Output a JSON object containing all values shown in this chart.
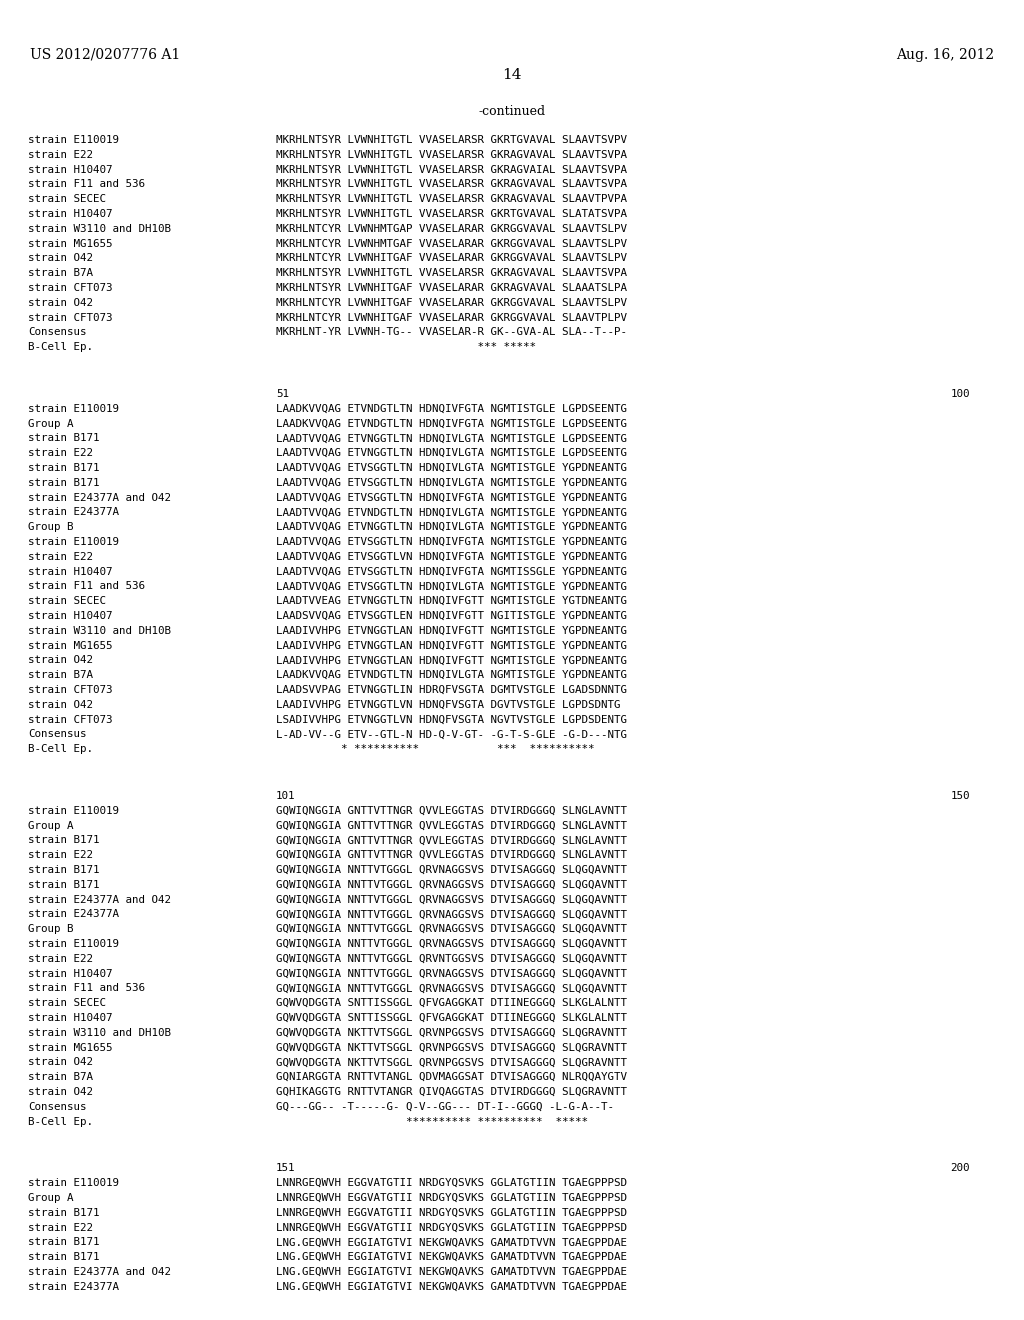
{
  "bg_color": "#ffffff",
  "header_left": "US 2012/0207776 A1",
  "header_right": "Aug. 16, 2012",
  "page_number": "14",
  "continued_label": "-continued",
  "sections": [
    {
      "pos_left": null,
      "pos_right": null,
      "rows": [
        {
          "label": "strain E110019",
          "seq": "MKRHLNTSYR LVWNHITGTL VVASELARSR GKRTGVAVAL SLAAVTSVPV"
        },
        {
          "label": "strain E22",
          "seq": "MKRHLNTSYR LVWNHITGTL VVASELARSR GKRAGVAVAL SLAAVTSVPA"
        },
        {
          "label": "strain H10407",
          "seq": "MKRHLNTSYR LVWNHITGTL VVASELARSR GKRAGVAIAL SLAAVTSVPA"
        },
        {
          "label": "strain F11 and 536",
          "seq": "MKRHLNTSYR LVWNHITGTL VVASELARSR GKRAGVAVAL SLAAVTSVPA"
        },
        {
          "label": "strain SECEC",
          "seq": "MKRHLNTSYR LVWNHITGTL VVASELARSR GKRAGVAVAL SLAAVTPVPA"
        },
        {
          "label": "strain H10407",
          "seq": "MKRHLNTSYR LVWNHITGTL VVASELARSR GKRTGVAVAL SLATATSVPA"
        },
        {
          "label": "strain W3110 and DH10B",
          "seq": "MKRHLNTCYR LVWNHMTGAP VVASELARAR GKRGGVAVAL SLAAVTSLPV"
        },
        {
          "label": "strain MG1655",
          "seq": "MKRHLNTCYR LVWNHMTGAF VVASELARAR GKRGGVAVAL SLAAVTSLPV"
        },
        {
          "label": "strain O42",
          "seq": "MKRHLNTCYR LVWNHITGAF VVASELARAR GKRGGVAVAL SLAAVTSLPV"
        },
        {
          "label": "strain B7A",
          "seq": "MKRHLNTSYR LVWNHITGTL VVASELARSR GKRAGVAVAL SLAAVTSVPA"
        },
        {
          "label": "strain CFT073",
          "seq": "MKRHLNTSYR LVWNHITGAF VVASELARAR GKRAGVAVAL SLAAATSLPA"
        },
        {
          "label": "strain O42",
          "seq": "MKRHLNTCYR LVWNHITGAF VVASELARAR GKRGGVAVAL SLAAVTSLPV"
        },
        {
          "label": "strain CFT073",
          "seq": "MKRHLNTCYR LVWNHITGAF VVASELARAR GKRGGVAVAL SLAAVTPLPV"
        },
        {
          "label": "Consensus",
          "seq": "MKRHLNT-YR LVWNH-TG-- VVASELAR-R GK--GVA-AL SLA--T--P-"
        },
        {
          "label": "B-Cell Ep.",
          "seq": "                               *** *****"
        }
      ]
    },
    {
      "pos_left": "51",
      "pos_right": "100",
      "rows": [
        {
          "label": "strain E110019",
          "seq": "LAADKVVQAG ETVNDGTLTN HDNQIVFGTA NGMTISTGLE LGPDSEENTG"
        },
        {
          "label": "Group A",
          "seq": "LAADKVVQAG ETVNDGTLTN HDNQIVFGTA NGMTISTGLE LGPDSEENTG"
        },
        {
          "label": "strain B171",
          "seq": "LAADTVVQAG ETVNGGTLTN HDNQIVLGTA NGMTISTGLE LGPDSEENTG"
        },
        {
          "label": "strain E22",
          "seq": "LAADTVVQAG ETVNGGTLTN HDNQIVLGTA NGMTISTGLE LGPDSEENTG"
        },
        {
          "label": "strain B171",
          "seq": "LAADTVVQAG ETVSGGTLTN HDNQIVLGTA NGMTISTGLE YGPDNEANTG"
        },
        {
          "label": "strain B171",
          "seq": "LAADTVVQAG ETVSGGTLTN HDNQIVLGTA NGMTISTGLE YGPDNEANTG"
        },
        {
          "label": "strain E24377A and O42",
          "seq": "LAADTVVQAG ETVSGGTLTN HDNQIVFGTA NGMTISTGLE YGPDNEANTG"
        },
        {
          "label": "strain E24377A",
          "seq": "LAADTVVQAG ETVNDGTLTN HDNQIVLGTA NGMTISTGLE YGPDNEANTG"
        },
        {
          "label": "Group B",
          "seq": "LAADTVVQAG ETVNGGTLTN HDNQIVLGTA NGMTISTGLE YGPDNEANTG"
        },
        {
          "label": "strain E110019",
          "seq": "LAADTVVQAG ETVSGGTLTN HDNQIVFGTA NGMTISTGLE YGPDNEANTG"
        },
        {
          "label": "strain E22",
          "seq": "LAADTVVQAG ETVSGGTLVN HDNQIVFGTA NGMTISTGLE YGPDNEANTG"
        },
        {
          "label": "strain H10407",
          "seq": "LAADTVVQAG ETVSGGTLTN HDNQIVFGTA NGMTISSGLE YGPDNEANTG"
        },
        {
          "label": "strain F11 and 536",
          "seq": "LAADTVVQAG ETVSGGTLTN HDNQIVLGTA NGMTISTGLE YGPDNEANTG"
        },
        {
          "label": "strain SECEC",
          "seq": "LAADTVVEAG ETVNGGTLTN HDNQIVFGTT NGMTISTGLE YGTDNEANTG"
        },
        {
          "label": "strain H10407",
          "seq": "LAADSVVQAG ETVSGGTLEN HDNQIVFGTT NGITISTGLE YGPDNEANTG"
        },
        {
          "label": "strain W3110 and DH10B",
          "seq": "LAADIVVHPG ETVNGGTLAN HDNQIVFGTT NGMTISTGLE YGPDNEANTG"
        },
        {
          "label": "strain MG1655",
          "seq": "LAADIVVHPG ETVNGGTLAN HDNQIVFGTT NGMTISTGLE YGPDNEANTG"
        },
        {
          "label": "strain O42",
          "seq": "LAADIVVHPG ETVNGGTLAN HDNQIVFGTT NGMTISTGLE YGPDNEANTG"
        },
        {
          "label": "strain B7A",
          "seq": "LAADKVVQAG ETVNDGTLTN HDNQIVLGTA NGMTISTGLE YGPDNEANTG"
        },
        {
          "label": "strain CFT073",
          "seq": "LAADSVVPAG ETVNGGTLIN HDRQFVSGTA DGMTVSTGLE LGADSDNNTG"
        },
        {
          "label": "strain O42",
          "seq": "LAADIVVHPG ETVNGGTLVN HDNQFVSGTA DGVTVSTGLE LGPDSDNTG"
        },
        {
          "label": "strain CFT073",
          "seq": "LSADIVVHPG ETVNGGTLVN HDNQFVSGTA NGVTVSTGLE LGPDSDENTG"
        },
        {
          "label": "Consensus",
          "seq": "L-AD-VV--G ETV--GTL-N HD-Q-V-GT- -G-T-S-GLE -G-D---NTG"
        },
        {
          "label": "B-Cell Ep.",
          "seq": "          * **********            ***  **********"
        }
      ]
    },
    {
      "pos_left": "101",
      "pos_right": "150",
      "rows": [
        {
          "label": "strain E110019",
          "seq": "GQWIQNGGIA GNTTVTTNGR QVVLEGGTAS DTVIRDGGGQ SLNGLAVNTT"
        },
        {
          "label": "Group A",
          "seq": "GQWIQNGGIA GNTTVTTNGR QVVLEGGTAS DTVIRDGGGQ SLNGLAVNTT"
        },
        {
          "label": "strain B171",
          "seq": "GQWIQNGGIA GNTTVTTNGR QVVLEGGTAS DTVIRDGGGQ SLNGLAVNTT"
        },
        {
          "label": "strain E22",
          "seq": "GQWIQNGGIA GNTTVTTNGR QVVLEGGTAS DTVIRDGGGQ SLNGLAVNTT"
        },
        {
          "label": "strain B171",
          "seq": "GQWIQNGGIA NNTTVTGGGL QRVNAGGSVS DTVISAGGGQ SLQGQAVNTT"
        },
        {
          "label": "strain B171",
          "seq": "GQWIQNGGIA NNTTVTGGGL QRVNAGGSVS DTVISAGGGQ SLQGQAVNTT"
        },
        {
          "label": "strain E24377A and O42",
          "seq": "GQWIQNGGIA NNTTVTGGGL QRVNAGGSVS DTVISAGGGQ SLQGQAVNTT"
        },
        {
          "label": "strain E24377A",
          "seq": "GQWIQNGGIA NNTTVTGGGL QRVNAGGSVS DTVISAGGGQ SLQGQAVNTT"
        },
        {
          "label": "Group B",
          "seq": "GQWIQNGGIA NNTTVTGGGL QRVNAGGSVS DTVISAGGGQ SLQGQAVNTT"
        },
        {
          "label": "strain E110019",
          "seq": "GQWIQNGGIA NNTTVTGGGL QRVNAGGSVS DTVISAGGGQ SLQGQAVNTT"
        },
        {
          "label": "strain E22",
          "seq": "GQWIQNGGTA NNTTVTGGGL QRVNTGGSVS DTVISAGGGQ SLQGQAVNTT"
        },
        {
          "label": "strain H10407",
          "seq": "GQWIQNGGIA NNTTVTGGGL QRVNAGGSVS DTVISAGGGQ SLQGQAVNTT"
        },
        {
          "label": "strain F11 and 536",
          "seq": "GQWIQNGGIA NNTTVTGGGL QRVNAGGSVS DTVISAGGGQ SLQGQAVNTT"
        },
        {
          "label": "strain SECEC",
          "seq": "GQWVQDGGTA SNTTISSGGL QFVGAGGKAT DTIINEGGGQ SLKGLALNTT"
        },
        {
          "label": "strain H10407",
          "seq": "GQWVQDGGTA SNTTISSGGL QFVGAGGKAT DTIINEGGGQ SLKGLALNTT"
        },
        {
          "label": "strain W3110 and DH10B",
          "seq": "GQWVQDGGTA NKTTVTSGGL QRVNPGGSVS DTVISAGGGQ SLQGRAVNTT"
        },
        {
          "label": "strain MG1655",
          "seq": "GQWVQDGGTA NKTTVTSGGL QRVNPGGSVS DTVISAGGGQ SLQGRAVNTT"
        },
        {
          "label": "strain O42",
          "seq": "GQWVQDGGTA NKTTVTSGGL QRVNPGGSVS DTVISAGGGQ SLQGRAVNTT"
        },
        {
          "label": "strain B7A",
          "seq": "GQNIARGGTA RNTTVTANGL QDVMAGGSAT DTVISAGGGQ NLRQQAYGTV"
        },
        {
          "label": "strain O42",
          "seq": "GQHIKAGGTG RNTTVTANGR QIVQAGGTAS DTVIRDGGGQ SLQGRAVNTT"
        },
        {
          "label": "Consensus",
          "seq": "GQ---GG-- -T-----G- Q-V--GG--- DT-I--GGGQ -L-G-A--T-"
        },
        {
          "label": "B-Cell Ep.",
          "seq": "                    ********** **********  *****"
        }
      ]
    },
    {
      "pos_left": "151",
      "pos_right": "200",
      "rows": [
        {
          "label": "strain E110019",
          "seq": "LNNRGEQWVH EGGVATGTII NRDGYQSVKS GGLATGTIIN TGAEGPPPSD"
        },
        {
          "label": "Group A",
          "seq": "LNNRGEQWVH EGGVATGTII NRDGYQSVKS GGLATGTIIN TGAEGPPPSD"
        },
        {
          "label": "strain B171",
          "seq": "LNNRGEQWVH EGGVATGTII NRDGYQSVKS GGLATGTIIN TGAEGPPPSD"
        },
        {
          "label": "strain E22",
          "seq": "LNNRGEQWVH EGGVATGTII NRDGYQSVKS GGLATGTIIN TGAEGPPPSD"
        },
        {
          "label": "strain B171",
          "seq": "LNG.GEQWVH EGGIATGTVI NEKGWQAVKS GAMATDTVVN TGAEGPPDAE"
        },
        {
          "label": "strain B171",
          "seq": "LNG.GEQWVH EGGIATGTVI NEKGWQAVKS GAMATDTVVN TGAEGPPDAE"
        },
        {
          "label": "strain E24377A and O42",
          "seq": "LNG.GEQWVH EGGIATGTVI NEKGWQAVKS GAMATDTVVN TGAEGPPDAE"
        },
        {
          "label": "strain E24377A",
          "seq": "LNG.GEQWVH EGGIATGTVI NEKGWQAVKS GAMATDTVVN TGAEGPPDAE"
        }
      ]
    }
  ]
}
